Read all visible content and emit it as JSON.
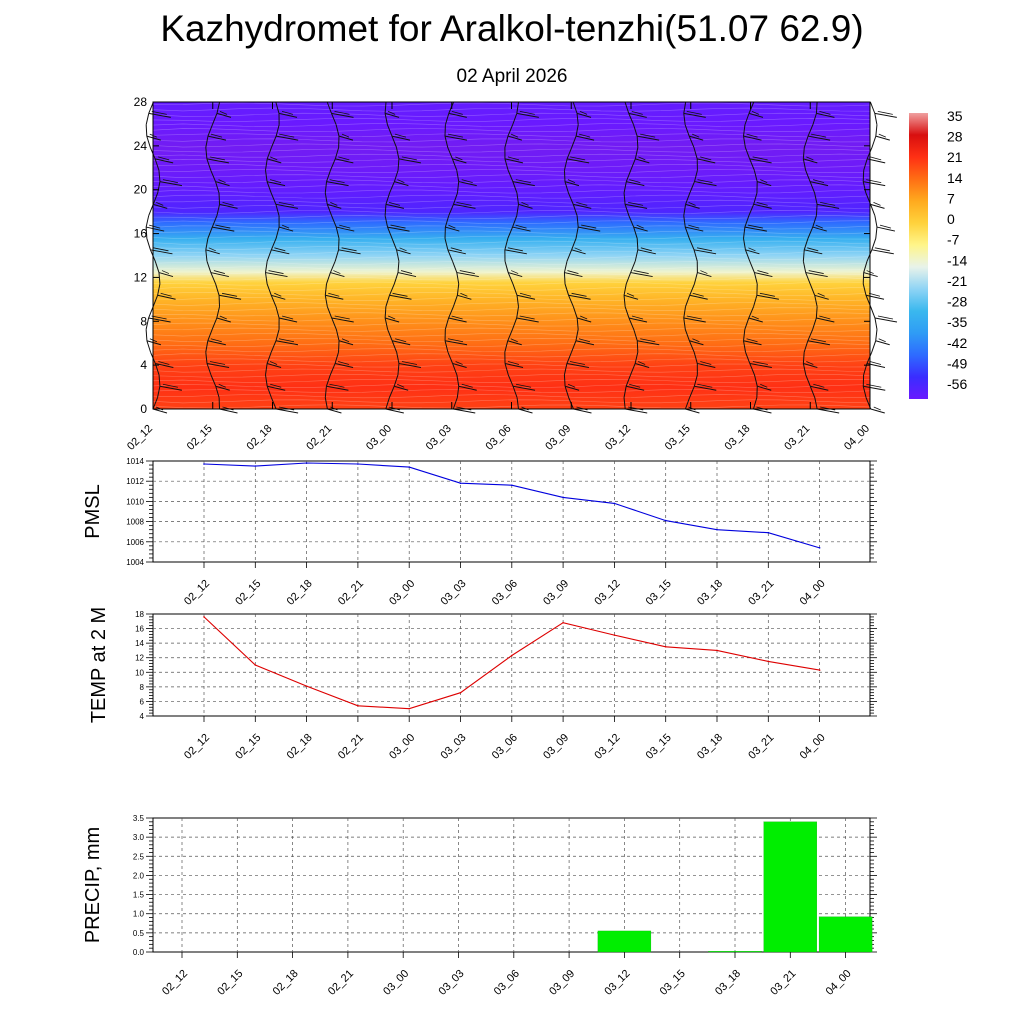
{
  "title": "Kazhydromet for Aralkol-tenzhi(51.07 62.9)",
  "subtitle": "02 April 2026",
  "time_labels": [
    "02_12",
    "02_15",
    "02_18",
    "02_21",
    "03_00",
    "03_03",
    "03_06",
    "03_09",
    "03_12",
    "03_15",
    "03_18",
    "03_21",
    "04_00"
  ],
  "colors": {
    "pmsl_line": "#0000dd",
    "temp_line": "#dd0000",
    "precip_bar": "#00ee00",
    "grid": "#555555"
  },
  "chart_data": [
    {
      "type": "heatmap",
      "title": "",
      "ylabel": "",
      "ylim": [
        0,
        28
      ],
      "yticks": [
        0,
        4,
        8,
        12,
        16,
        20,
        24,
        28
      ],
      "categories": [
        "02_12",
        "02_15",
        "02_18",
        "02_21",
        "03_00",
        "03_03",
        "03_06",
        "03_09",
        "03_12",
        "03_15",
        "03_18",
        "03_21",
        "04_00"
      ],
      "colorbar_labels": [
        "35",
        "28",
        "21",
        "14",
        "7",
        "0",
        "-7",
        "-14",
        "-21",
        "-28",
        "-35",
        "-42",
        "-49",
        "-56"
      ],
      "colorbar_values": [
        35,
        28,
        21,
        14,
        7,
        0,
        -7,
        -14,
        -21,
        -28,
        -35,
        -42,
        -49,
        -56
      ],
      "profile": {
        "heights": [
          0,
          2,
          4,
          6,
          8,
          10,
          11.5,
          12.5,
          14,
          15.5,
          17,
          18,
          20,
          22,
          24,
          26,
          28
        ],
        "temperature": [
          19,
          21,
          19,
          14,
          10,
          5,
          0,
          -12,
          -21,
          -30,
          -42,
          -52,
          -55,
          -57,
          -58,
          -56,
          -55
        ]
      },
      "wind_barbs": true,
      "grid": false
    },
    {
      "type": "line",
      "ylabel": "PMSL",
      "ylim": [
        1004,
        1014
      ],
      "yticks": [
        1004,
        1006,
        1008,
        1010,
        1012,
        1014
      ],
      "categories": [
        "02_12",
        "02_15",
        "02_18",
        "02_21",
        "03_00",
        "03_03",
        "03_06",
        "03_09",
        "03_12",
        "03_15",
        "03_18",
        "03_21",
        "04_00"
      ],
      "values": [
        1013.7,
        1013.5,
        1013.8,
        1013.7,
        1013.4,
        1011.8,
        1011.6,
        1010.4,
        1009.8,
        1008.1,
        1007.2,
        1006.9,
        1005.4
      ],
      "grid": true
    },
    {
      "type": "line",
      "ylabel": "TEMP at 2 M",
      "ylim": [
        4,
        18
      ],
      "yticks": [
        4,
        6,
        8,
        10,
        12,
        14,
        16,
        18
      ],
      "categories": [
        "02_12",
        "02_15",
        "02_18",
        "02_21",
        "03_00",
        "03_03",
        "03_06",
        "03_09",
        "03_12",
        "03_15",
        "03_18",
        "03_21",
        "04_00"
      ],
      "values": [
        17.6,
        11.0,
        8.1,
        5.4,
        5.0,
        7.2,
        12.3,
        16.8,
        15.1,
        13.5,
        13.0,
        11.5,
        10.3
      ],
      "grid": true
    },
    {
      "type": "bar",
      "ylabel": "PRECIP, mm",
      "ylim": [
        0,
        3.5
      ],
      "yticks": [
        "0.0",
        "0.5",
        "1.0",
        "1.5",
        "2.0",
        "2.5",
        "3.0",
        "3.5"
      ],
      "categories": [
        "02_12",
        "02_15",
        "02_18",
        "02_21",
        "03_00",
        "03_03",
        "03_06",
        "03_09",
        "03_12",
        "03_15",
        "03_18",
        "03_21",
        "04_00"
      ],
      "values": [
        0,
        0,
        0,
        0,
        0,
        0,
        0,
        0,
        0.55,
        0,
        0.02,
        3.4,
        0.92
      ],
      "grid": true
    }
  ]
}
